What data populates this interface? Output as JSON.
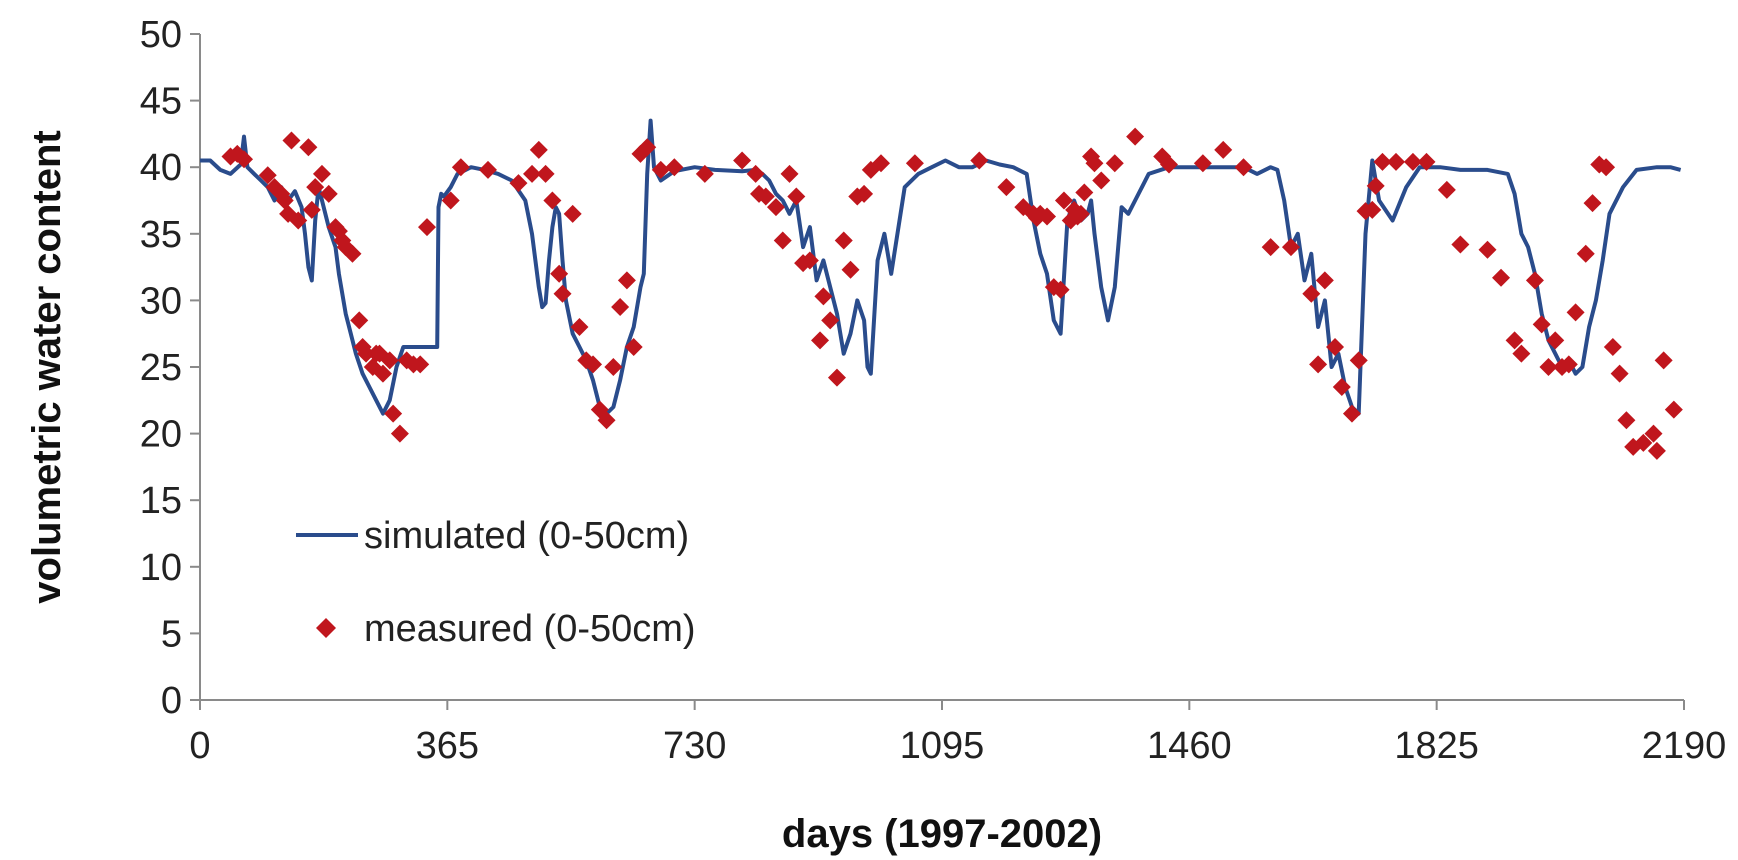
{
  "chart_data": {
    "type": "line",
    "title": "",
    "xlabel": "days (1997-2002)",
    "ylabel": "volumetric water content",
    "xlim": [
      0,
      2190
    ],
    "ylim": [
      0,
      50
    ],
    "xticks": [
      0,
      365,
      730,
      1095,
      1460,
      1825,
      2190
    ],
    "yticks": [
      0,
      5,
      10,
      15,
      20,
      25,
      30,
      35,
      40,
      45,
      50
    ],
    "grid": false,
    "legend_position": "lower-left",
    "colors": {
      "simulated": "#2a4c8c",
      "measured": "#c0161d"
    },
    "series": [
      {
        "name": "simulated (0-50cm)",
        "kind": "line",
        "x": [
          0,
          15,
          30,
          45,
          60,
          65,
          70,
          80,
          90,
          100,
          110,
          120,
          130,
          140,
          150,
          155,
          160,
          165,
          170,
          175,
          180,
          190,
          200,
          205,
          210,
          215,
          220,
          230,
          240,
          250,
          260,
          270,
          280,
          290,
          300,
          305,
          310,
          320,
          330,
          340,
          350,
          352,
          356,
          360,
          370,
          380,
          400,
          420,
          440,
          460,
          480,
          490,
          500,
          505,
          510,
          515,
          520,
          525,
          530,
          535,
          540,
          550,
          560,
          570,
          580,
          590,
          600,
          610,
          620,
          630,
          640,
          650,
          655,
          660,
          665,
          670,
          680,
          700,
          730,
          760,
          800,
          820,
          830,
          840,
          850,
          860,
          870,
          880,
          890,
          900,
          910,
          920,
          930,
          940,
          950,
          960,
          970,
          980,
          985,
          990,
          1000,
          1010,
          1020,
          1040,
          1060,
          1080,
          1100,
          1120,
          1140,
          1160,
          1180,
          1200,
          1220,
          1230,
          1240,
          1250,
          1260,
          1270,
          1280,
          1290,
          1300,
          1310,
          1315,
          1320,
          1330,
          1340,
          1350,
          1360,
          1370,
          1380,
          1400,
          1430,
          1460,
          1500,
          1540,
          1560,
          1580,
          1590,
          1600,
          1610,
          1620,
          1630,
          1640,
          1650,
          1660,
          1670,
          1680,
          1690,
          1700,
          1710,
          1720,
          1730,
          1740,
          1760,
          1780,
          1800,
          1830,
          1860,
          1900,
          1930,
          1940,
          1950,
          1960,
          1970,
          1980,
          1990,
          2000,
          2010,
          2020,
          2030,
          2040,
          2050,
          2060,
          2070,
          2080,
          2100,
          2120,
          2150,
          2170,
          2185
        ],
        "y": [
          40.5,
          40.5,
          39.8,
          39.5,
          40.2,
          42.3,
          40,
          39.5,
          39,
          38.5,
          37.5,
          38.5,
          37.5,
          38.2,
          37,
          35,
          32.5,
          31.5,
          36,
          38.5,
          37.5,
          35.5,
          34,
          32,
          30.5,
          29,
          28,
          26,
          24.5,
          23.5,
          22.5,
          21.5,
          22.5,
          25,
          26.5,
          26.5,
          26.5,
          26.5,
          26.5,
          26.5,
          26.5,
          37,
          38,
          37.8,
          38.5,
          39.5,
          40,
          39.8,
          39.5,
          39,
          37.5,
          35,
          31,
          29.5,
          29.8,
          33,
          35.5,
          37,
          36.5,
          33,
          30,
          27.5,
          26.5,
          25.5,
          24,
          22,
          21.5,
          22,
          24,
          26.5,
          28,
          31,
          32,
          39.5,
          43.5,
          40,
          39,
          39.7,
          40,
          39.8,
          39.7,
          39.8,
          39.5,
          39,
          38,
          37.5,
          36.5,
          37.5,
          34,
          35.5,
          31.5,
          33,
          31,
          29,
          26,
          27.5,
          30,
          28.5,
          25,
          24.5,
          33,
          35,
          32,
          38.5,
          39.5,
          40,
          40.5,
          40,
          40,
          40.5,
          40.2,
          40,
          39.5,
          36,
          33.5,
          32,
          28.5,
          27.5,
          36,
          37.5,
          36,
          36.5,
          37.5,
          35,
          31,
          28.5,
          31,
          37,
          36.5,
          37.5,
          39.5,
          40,
          40,
          40,
          40,
          39.5,
          40,
          39.8,
          37.5,
          34,
          35,
          31.5,
          33.5,
          28,
          30,
          25,
          26,
          23.5,
          22,
          21.5,
          35,
          40.5,
          37.5,
          36,
          38.5,
          40,
          40,
          39.8,
          39.8,
          39.5,
          38,
          35,
          34,
          32,
          29,
          27,
          26,
          25,
          25.5,
          24.5,
          25,
          28,
          30,
          33,
          36.5,
          38.5,
          39.8,
          40,
          40,
          39.8
        ],
        "color": "#2a4c8c"
      },
      {
        "name": "measured (0-50cm)",
        "kind": "scatter",
        "x": [
          45,
          55,
          65,
          100,
          110,
          120,
          125,
          130,
          135,
          145,
          160,
          165,
          170,
          180,
          190,
          200,
          205,
          210,
          215,
          225,
          235,
          240,
          245,
          255,
          260,
          265,
          270,
          280,
          285,
          295,
          305,
          315,
          325,
          335,
          370,
          385,
          425,
          470,
          490,
          500,
          510,
          520,
          530,
          535,
          550,
          560,
          570,
          580,
          590,
          600,
          610,
          620,
          630,
          640,
          650,
          660,
          680,
          700,
          745,
          800,
          820,
          825,
          835,
          850,
          860,
          870,
          880,
          890,
          900,
          915,
          920,
          930,
          940,
          950,
          960,
          970,
          980,
          990,
          1005,
          1055,
          1150,
          1190,
          1215,
          1230,
          1235,
          1240,
          1250,
          1260,
          1270,
          1275,
          1285,
          1290,
          1295,
          1300,
          1305,
          1315,
          1320,
          1330,
          1350,
          1380,
          1420,
          1430,
          1480,
          1510,
          1540,
          1580,
          1610,
          1640,
          1650,
          1660,
          1675,
          1685,
          1700,
          1710,
          1720,
          1730,
          1735,
          1745,
          1765,
          1790,
          1810,
          1840,
          1860,
          1900,
          1920,
          1940,
          1950,
          1970,
          1980,
          1990,
          2000,
          2010,
          2020,
          2030,
          2045,
          2055,
          2065,
          2075,
          2085,
          2095,
          2105,
          2115,
          2130,
          2145,
          2150,
          2160,
          2175
        ],
        "y": [
          40.8,
          41,
          40.6,
          39.4,
          38.5,
          38,
          37.5,
          36.5,
          42,
          36,
          41.5,
          36.8,
          38.5,
          39.5,
          38,
          35.5,
          35.2,
          34.5,
          34,
          33.5,
          28.5,
          26.5,
          26,
          25,
          26,
          26,
          24.5,
          25.5,
          21.5,
          20,
          25.5,
          25.2,
          25.2,
          35.5,
          37.5,
          40,
          39.8,
          38.8,
          39.5,
          41.3,
          39.5,
          37.5,
          32,
          30.5,
          36.5,
          28,
          25.5,
          25.2,
          21.8,
          21,
          25,
          29.5,
          31.5,
          26.5,
          41,
          41.5,
          39.8,
          40,
          39.5,
          40.5,
          39.5,
          38,
          37.8,
          37,
          34.5,
          39.5,
          37.8,
          32.8,
          33,
          27,
          30.3,
          28.5,
          24.2,
          34.5,
          32.3,
          37.8,
          38,
          39.8,
          40.3,
          40.3,
          40.5,
          38.5,
          37,
          36.5,
          36.2,
          36.5,
          36.3,
          31,
          30.8,
          37.5,
          36,
          36.8,
          36.3,
          36.5,
          38.1,
          40.8,
          40.3,
          39,
          40.3,
          42.3,
          40.8,
          40.2,
          40.3,
          41.3,
          40,
          34,
          34,
          30.5,
          25.2,
          31.5,
          26.5,
          23.5,
          21.5,
          25.5,
          36.7,
          36.8,
          38.6,
          40.4,
          40.4,
          40.4,
          40.4,
          38.3,
          34.2,
          33.8,
          31.7,
          27,
          26,
          31.5,
          28.2,
          25,
          27,
          25,
          25.2,
          29.1,
          33.5,
          37.3,
          40.2,
          40,
          26.5,
          24.5,
          21,
          19,
          19.3,
          20,
          18.7,
          25.5,
          21.8
        ],
        "color": "#c0161d"
      }
    ]
  }
}
